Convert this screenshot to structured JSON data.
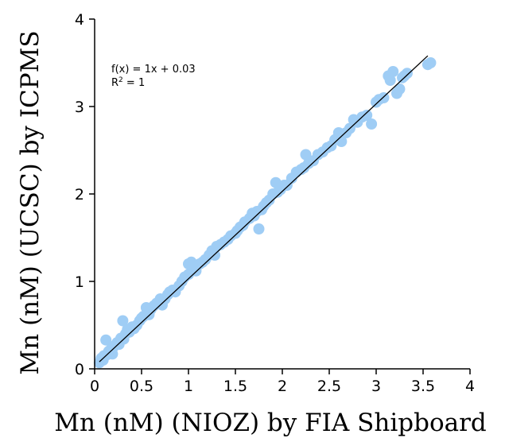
{
  "chart_data": {
    "type": "scatter",
    "title": "",
    "xlabel": "Mn (nM) (NIOZ) by FIA Shipboard",
    "ylabel": "Mn (nM) (UCSC) by ICPMS",
    "xlim": [
      0,
      4
    ],
    "ylim": [
      0,
      4
    ],
    "xticks": [
      "0",
      "0.5",
      "1",
      "1.5",
      "2",
      "2.5",
      "3",
      "3.5",
      "4"
    ],
    "yticks": [
      "0",
      "1",
      "2",
      "3",
      "4"
    ],
    "grid": false,
    "legend": "none",
    "point_color": "#9fcdf5",
    "line_color": "#000000",
    "annotation": {
      "equation": "f(x) = 1x + 0.03",
      "r2_label": "R",
      "r2_sup": "2",
      "r2_value": " = 1"
    },
    "trendline": {
      "slope": 1,
      "intercept": 0.03,
      "x_range": [
        0.05,
        3.55
      ]
    },
    "points": [
      [
        0.05,
        0.07
      ],
      [
        0.07,
        0.12
      ],
      [
        0.09,
        0.1
      ],
      [
        0.1,
        0.15
      ],
      [
        0.12,
        0.33
      ],
      [
        0.13,
        0.16
      ],
      [
        0.15,
        0.2
      ],
      [
        0.17,
        0.22
      ],
      [
        0.19,
        0.17
      ],
      [
        0.2,
        0.25
      ],
      [
        0.22,
        0.27
      ],
      [
        0.24,
        0.3
      ],
      [
        0.26,
        0.28
      ],
      [
        0.28,
        0.35
      ],
      [
        0.3,
        0.55
      ],
      [
        0.31,
        0.34
      ],
      [
        0.33,
        0.4
      ],
      [
        0.35,
        0.45
      ],
      [
        0.37,
        0.42
      ],
      [
        0.4,
        0.48
      ],
      [
        0.42,
        0.46
      ],
      [
        0.45,
        0.5
      ],
      [
        0.48,
        0.55
      ],
      [
        0.5,
        0.58
      ],
      [
        0.52,
        0.6
      ],
      [
        0.55,
        0.7
      ],
      [
        0.58,
        0.62
      ],
      [
        0.6,
        0.68
      ],
      [
        0.63,
        0.72
      ],
      [
        0.66,
        0.75
      ],
      [
        0.7,
        0.8
      ],
      [
        0.72,
        0.73
      ],
      [
        0.75,
        0.8
      ],
      [
        0.78,
        0.85
      ],
      [
        0.8,
        0.88
      ],
      [
        0.83,
        0.9
      ],
      [
        0.86,
        0.88
      ],
      [
        0.9,
        0.95
      ],
      [
        0.93,
        1.0
      ],
      [
        0.96,
        1.05
      ],
      [
        1.0,
        1.08
      ],
      [
        1.0,
        1.2
      ],
      [
        1.03,
        1.22
      ],
      [
        1.05,
        1.15
      ],
      [
        1.08,
        1.12
      ],
      [
        1.12,
        1.2
      ],
      [
        1.15,
        1.22
      ],
      [
        1.18,
        1.25
      ],
      [
        1.22,
        1.3
      ],
      [
        1.25,
        1.35
      ],
      [
        1.28,
        1.3
      ],
      [
        1.3,
        1.4
      ],
      [
        1.34,
        1.42
      ],
      [
        1.38,
        1.45
      ],
      [
        1.42,
        1.48
      ],
      [
        1.45,
        1.52
      ],
      [
        1.5,
        1.55
      ],
      [
        1.52,
        1.58
      ],
      [
        1.55,
        1.62
      ],
      [
        1.58,
        1.64
      ],
      [
        1.6,
        1.68
      ],
      [
        1.65,
        1.72
      ],
      [
        1.68,
        1.78
      ],
      [
        1.7,
        1.75
      ],
      [
        1.73,
        1.8
      ],
      [
        1.75,
        1.6
      ],
      [
        1.78,
        1.82
      ],
      [
        1.8,
        1.86
      ],
      [
        1.83,
        1.9
      ],
      [
        1.86,
        1.93
      ],
      [
        1.9,
        2.0
      ],
      [
        1.93,
        2.13
      ],
      [
        1.95,
        2.02
      ],
      [
        1.98,
        2.05
      ],
      [
        2.02,
        2.1
      ],
      [
        2.05,
        2.1
      ],
      [
        2.1,
        2.18
      ],
      [
        2.15,
        2.25
      ],
      [
        2.2,
        2.28
      ],
      [
        2.23,
        2.3
      ],
      [
        2.25,
        2.45
      ],
      [
        2.28,
        2.35
      ],
      [
        2.33,
        2.38
      ],
      [
        2.38,
        2.45
      ],
      [
        2.43,
        2.48
      ],
      [
        2.48,
        2.53
      ],
      [
        2.52,
        2.55
      ],
      [
        2.56,
        2.62
      ],
      [
        2.6,
        2.7
      ],
      [
        2.63,
        2.6
      ],
      [
        2.68,
        2.7
      ],
      [
        2.72,
        2.75
      ],
      [
        2.76,
        2.85
      ],
      [
        2.8,
        2.82
      ],
      [
        2.85,
        2.88
      ],
      [
        2.9,
        2.9
      ],
      [
        2.95,
        2.8
      ],
      [
        3.0,
        3.05
      ],
      [
        3.03,
        3.08
      ],
      [
        3.08,
        3.1
      ],
      [
        3.13,
        3.35
      ],
      [
        3.15,
        3.3
      ],
      [
        3.18,
        3.4
      ],
      [
        3.22,
        3.15
      ],
      [
        3.25,
        3.2
      ],
      [
        3.28,
        3.33
      ],
      [
        3.3,
        3.35
      ],
      [
        3.33,
        3.38
      ],
      [
        3.55,
        3.48
      ],
      [
        3.58,
        3.5
      ]
    ]
  }
}
